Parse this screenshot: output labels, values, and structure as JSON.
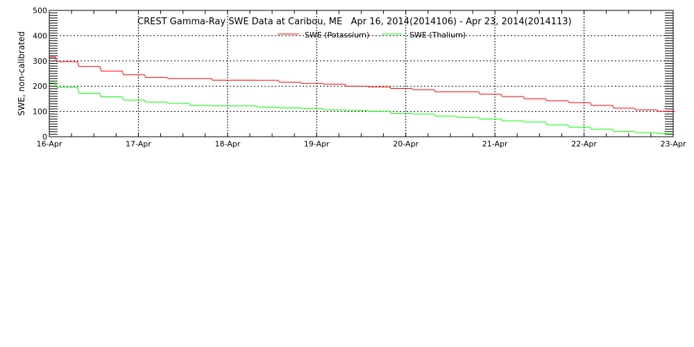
{
  "chart_data": {
    "type": "line",
    "step": true,
    "title": "CREST Gamma-Ray SWE Data at Caribou, ME   Apr 16, 2014(2014106) - Apr 23, 2014(2014113)",
    "xlabel": "",
    "ylabel": "SWE, non-calibrated",
    "xlim": [
      "2014-04-16T00:00",
      "2014-04-23T00:00"
    ],
    "ylim": [
      0,
      500
    ],
    "x_ticks": [
      "16-Apr",
      "17-Apr",
      "18-Apr",
      "19-Apr",
      "20-Apr",
      "21-Apr",
      "22-Apr",
      "23-Apr"
    ],
    "y_ticks": [
      "0",
      "100",
      "200",
      "300",
      "400",
      "500"
    ],
    "grid": true,
    "legend_position": "top-center",
    "x": [
      "2014-04-16T00:00",
      "2014-04-16T02:00",
      "2014-04-16T08:00",
      "2014-04-16T14:00",
      "2014-04-16T20:00",
      "2014-04-17T02:00",
      "2014-04-17T08:00",
      "2014-04-17T14:00",
      "2014-04-17T20:00",
      "2014-04-18T02:00",
      "2014-04-18T08:00",
      "2014-04-18T14:00",
      "2014-04-18T20:00",
      "2014-04-19T02:00",
      "2014-04-19T08:00",
      "2014-04-19T14:00",
      "2014-04-19T20:00",
      "2014-04-20T02:00",
      "2014-04-20T08:00",
      "2014-04-20T14:00",
      "2014-04-20T20:00",
      "2014-04-21T02:00",
      "2014-04-21T08:00",
      "2014-04-21T14:00",
      "2014-04-21T20:00",
      "2014-04-22T02:00",
      "2014-04-22T08:00",
      "2014-04-22T14:00",
      "2014-04-22T20:00"
    ],
    "x_end": [
      "2014-04-23T00:54",
      "2014-04-23T00:15"
    ],
    "series": [
      {
        "name": "SWE (Potassium)",
        "color": "#ff0000",
        "values": [
          315,
          297,
          278,
          260,
          245,
          235,
          230,
          230,
          224,
          224,
          223,
          216,
          211,
          208,
          200,
          197,
          191,
          186,
          178,
          178,
          168,
          159,
          150,
          142,
          135,
          124,
          113,
          106,
          101
        ]
      },
      {
        "name": "SWE (Thalium)",
        "color": "#00ff00",
        "values": [
          213,
          195,
          172,
          158,
          145,
          137,
          132,
          124,
          122,
          122,
          117,
          114,
          112,
          106,
          104,
          101,
          92,
          90,
          82,
          76,
          70,
          63,
          58,
          47,
          38,
          30,
          21,
          16,
          12
        ]
      }
    ]
  }
}
